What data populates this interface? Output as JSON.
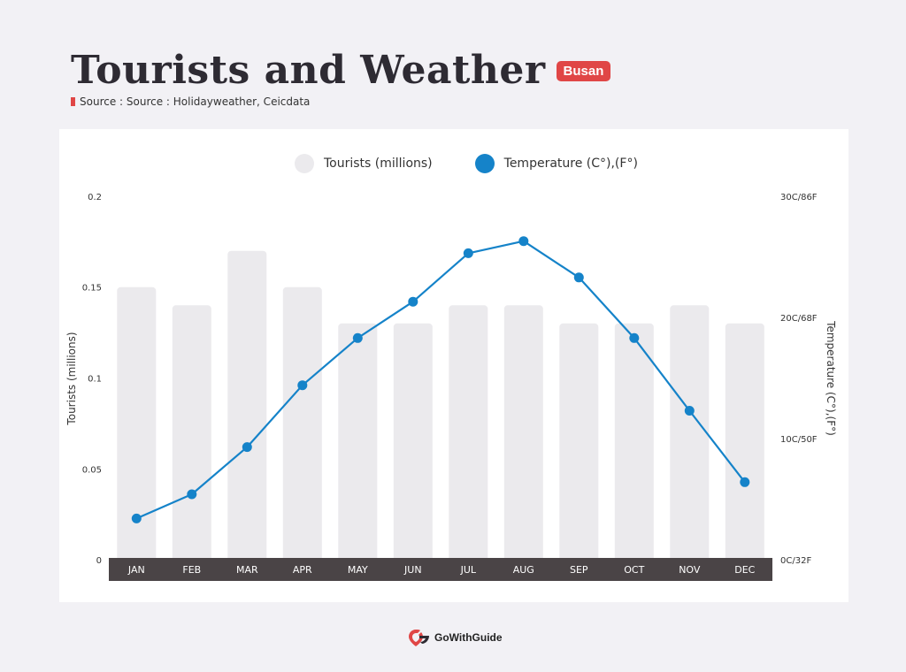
{
  "header": {
    "title": "Tourists and Weather",
    "city": "Busan",
    "source": "Source : Source : Holidayweather, Ceicdata"
  },
  "footer": {
    "brand": "GoWithGuide",
    "logo_icon": "gowithguide-logo-icon"
  },
  "colors": {
    "bar": "#ebeaed",
    "line": "#1583c9",
    "axis_band": "#4a4446",
    "accent": "#e04646",
    "title": "#2e2b33"
  },
  "chart_data": {
    "type": "bar",
    "categories": [
      "JAN",
      "FEB",
      "MAR",
      "APR",
      "MAY",
      "JUN",
      "JUL",
      "AUG",
      "SEP",
      "OCT",
      "NOV",
      "DEC"
    ],
    "series": [
      {
        "name": "Tourists (millions)",
        "type": "bar",
        "axis": "left",
        "values": [
          0.15,
          0.14,
          0.17,
          0.15,
          0.13,
          0.13,
          0.14,
          0.14,
          0.13,
          0.13,
          0.14,
          0.13
        ]
      },
      {
        "name": "Temperature (C°),(F°)",
        "type": "line",
        "axis": "right",
        "values": [
          3.4,
          5.4,
          9.3,
          14.4,
          18.3,
          21.3,
          25.3,
          26.3,
          23.3,
          18.3,
          12.3,
          6.4
        ]
      }
    ],
    "ylabel": "Tourists (millions)",
    "ylabel_right": "Temperature (C°),(F°)",
    "ylim": [
      0,
      0.2
    ],
    "ylim_right": [
      0,
      30
    ],
    "y_ticks": [
      "0",
      "0.05",
      "0.1",
      "0.15",
      "0.2"
    ],
    "y_ticks_right": [
      "0C/32F",
      "10C/50F",
      "20C/68F",
      "30C/86F"
    ],
    "grid": false,
    "legend_position": "top-center"
  }
}
